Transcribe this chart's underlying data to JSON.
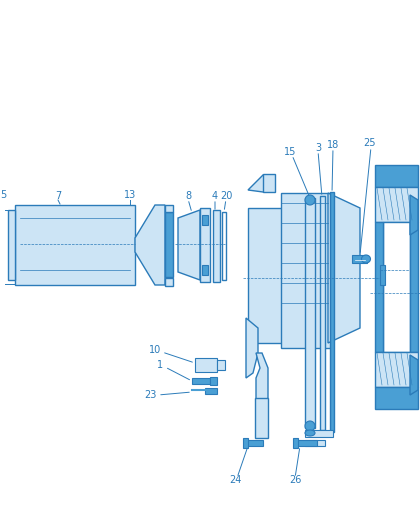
{
  "bg_color": "#ffffff",
  "lc": "#2b7bb9",
  "fc": "#cce4f5",
  "dc": "#4a9fd4",
  "hatch_c": "#3a8ec4",
  "label_c": "#2b7bb9",
  "figsize": [
    4.2,
    5.28
  ],
  "dpi": 100
}
